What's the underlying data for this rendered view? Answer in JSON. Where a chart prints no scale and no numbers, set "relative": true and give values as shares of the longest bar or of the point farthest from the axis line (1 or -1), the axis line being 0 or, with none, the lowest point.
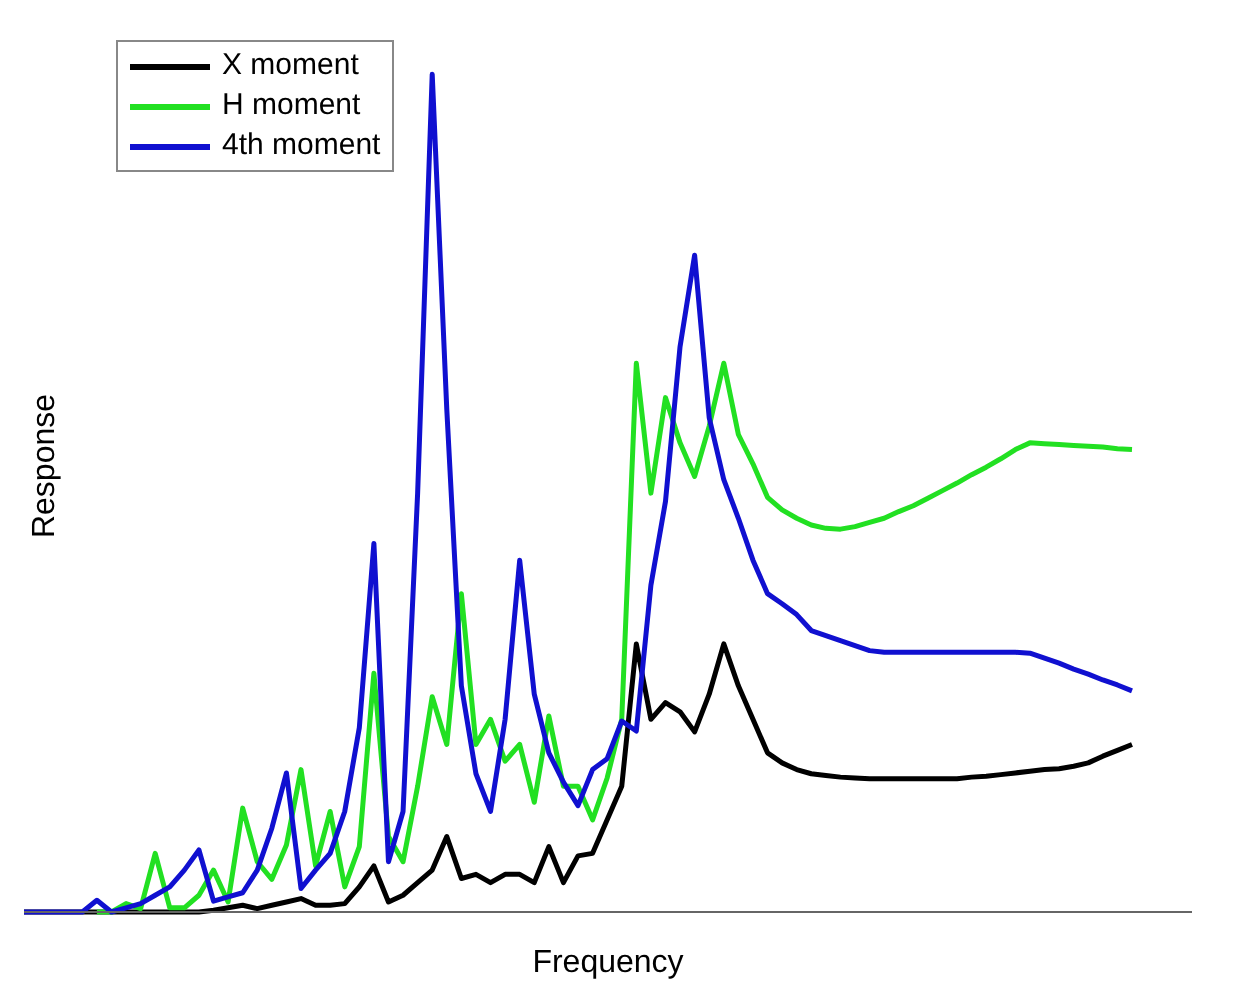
{
  "chart_data": {
    "type": "line",
    "relative": true,
    "xlabel": "Frequency",
    "ylabel": "Response",
    "legend": "top left",
    "marker": "none",
    "line_style": "solid",
    "categories": [
      null,
      null,
      null,
      null,
      null,
      null,
      null,
      null,
      null,
      null,
      null,
      null,
      null,
      null,
      null,
      null,
      null,
      null,
      null,
      null,
      null,
      null,
      null,
      null,
      null,
      null,
      null,
      null,
      null,
      null,
      null,
      null,
      null,
      null,
      null,
      null,
      null,
      null,
      null,
      null,
      null,
      null,
      null,
      null,
      null,
      null,
      null,
      null,
      null,
      null,
      null,
      null,
      null,
      null,
      null,
      null,
      null,
      null,
      null,
      null,
      null,
      null,
      null,
      null,
      null,
      null,
      null,
      null,
      null,
      null,
      null,
      null,
      null,
      null,
      null,
      null,
      null
    ],
    "series": [
      {
        "name": "X moment",
        "color": "#000000",
        "values": [
          0,
          0,
          0,
          0,
          0,
          0,
          0,
          0,
          0,
          0,
          0,
          0,
          0,
          0.002,
          0.005,
          0.008,
          0.004,
          0.008,
          0.012,
          0.016,
          0.008,
          0.008,
          0.01,
          0.03,
          0.055,
          0.012,
          0.02,
          0.035,
          0.05,
          0.09,
          0.04,
          0.045,
          0.035,
          0.045,
          0.045,
          0.035,
          0.078,
          0.035,
          0.067,
          0.07,
          0.11,
          0.15,
          0.32,
          0.23,
          0.25,
          0.239,
          0.215,
          0.26,
          0.32,
          0.27,
          0.23,
          0.19,
          0.178,
          0.17,
          0.165,
          0.163,
          0.161,
          0.16,
          0.159,
          0.159,
          0.159,
          0.159,
          0.159,
          0.159,
          0.159,
          0.161,
          0.162,
          0.164,
          0.166,
          0.168,
          0.17,
          0.171,
          0.174,
          0.178,
          0.186,
          0.193,
          0.2
        ]
      },
      {
        "name": "H moment",
        "color": "#22e022",
        "values": [
          null,
          null,
          null,
          null,
          null,
          0,
          0,
          0.01,
          0.004,
          0.07,
          0.005,
          0.005,
          0.02,
          0.05,
          0.012,
          0.124,
          0.06,
          0.039,
          0.08,
          0.17,
          0.055,
          0.12,
          0.03,
          0.078,
          0.285,
          0.09,
          0.06,
          0.15,
          0.257,
          0.2,
          0.38,
          0.2,
          0.23,
          0.18,
          0.2,
          0.131,
          0.234,
          0.15,
          0.15,
          0.11,
          0.16,
          0.23,
          0.655,
          0.5,
          0.614,
          0.56,
          0.52,
          0.58,
          0.655,
          0.57,
          0.535,
          0.495,
          0.48,
          0.47,
          0.462,
          0.458,
          0.457,
          0.46,
          0.465,
          0.47,
          0.478,
          0.485,
          0.494,
          0.503,
          0.512,
          0.522,
          0.531,
          0.541,
          0.552,
          0.56,
          0.559,
          0.558,
          0.557,
          0.556,
          0.555,
          0.553,
          0.552
        ]
      },
      {
        "name": "4th moment",
        "color": "#1010d0",
        "values": [
          0,
          0,
          0,
          0,
          0,
          0.014,
          0,
          0.005,
          0.01,
          0.02,
          0.03,
          0.05,
          0.074,
          0.013,
          0.018,
          0.023,
          0.05,
          0.1,
          0.166,
          0.028,
          0.05,
          0.07,
          0.12,
          0.22,
          0.44,
          0.06,
          0.12,
          0.5,
          1.0,
          0.6,
          0.27,
          0.165,
          0.12,
          0.23,
          0.42,
          0.26,
          0.19,
          0.155,
          0.127,
          0.17,
          0.183,
          0.228,
          0.216,
          0.39,
          0.49,
          0.675,
          0.784,
          0.59,
          0.516,
          0.47,
          0.42,
          0.38,
          0.368,
          0.355,
          0.336,
          0.33,
          0.324,
          0.318,
          0.312,
          0.31,
          0.31,
          0.31,
          0.31,
          0.31,
          0.31,
          0.31,
          0.31,
          0.31,
          0.31,
          0.309,
          0.303,
          0.297,
          0.29,
          0.284,
          0.277,
          0.271,
          0.264
        ]
      }
    ]
  }
}
